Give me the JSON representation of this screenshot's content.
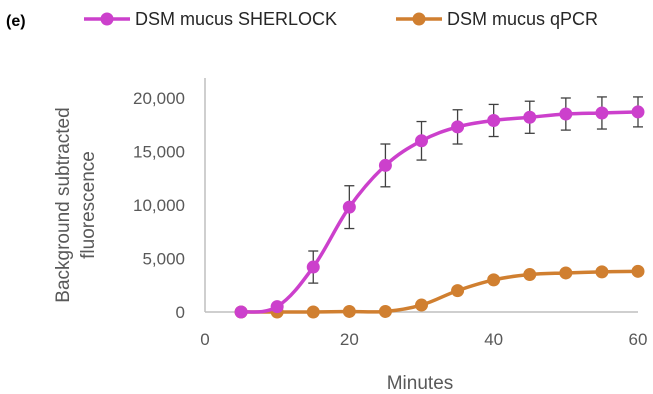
{
  "panel_label": "(e)",
  "colors": {
    "sherlock": "#CC40CC",
    "qpcr": "#D07F30",
    "axis": "#BFBFBF",
    "error": "#404040"
  },
  "chart_data": {
    "type": "line",
    "title": "",
    "xlabel": "Minutes",
    "ylabel_lines": [
      "Background subtracted",
      "fluorescence"
    ],
    "xlim": [
      0,
      60
    ],
    "ylim": [
      0,
      20000
    ],
    "x_ticks": [
      0,
      20,
      40,
      60
    ],
    "x_tick_labels": [
      "0",
      "20",
      "40",
      "60"
    ],
    "y_ticks": [
      0,
      5000,
      10000,
      15000,
      20000
    ],
    "y_tick_labels": [
      "0",
      "5,000",
      "10,000",
      "15,000",
      "20,000"
    ],
    "grid": false,
    "legend_position": "top",
    "x": [
      5,
      10,
      15,
      20,
      25,
      30,
      35,
      40,
      45,
      50,
      55,
      60
    ],
    "series": [
      {
        "name": "DSM mucus SHERLOCK",
        "color": "#CC40CC",
        "values": [
          0,
          500,
          4200,
          9800,
          13700,
          16000,
          17300,
          17900,
          18200,
          18500,
          18600,
          18700
        ],
        "error": [
          0,
          250,
          1500,
          2000,
          2000,
          1800,
          1600,
          1500,
          1500,
          1500,
          1500,
          1400
        ]
      },
      {
        "name": "DSM mucus qPCR",
        "color": "#D07F30",
        "values": [
          0,
          0,
          0,
          50,
          50,
          650,
          2000,
          3000,
          3500,
          3650,
          3750,
          3800
        ],
        "error": []
      }
    ]
  }
}
